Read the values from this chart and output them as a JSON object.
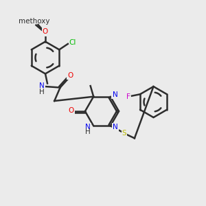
{
  "background_color": "#ebebeb",
  "bond_color": "#2d2d2d",
  "bond_width": 1.8,
  "atom_colors": {
    "C": "#2d2d2d",
    "N": "#0000ee",
    "O": "#ee0000",
    "S": "#bbbb00",
    "F": "#cc00cc",
    "Cl": "#00bb00",
    "H": "#2d2d2d"
  },
  "font_size": 7.5,
  "xlim": [
    0,
    10
  ],
  "ylim": [
    0,
    10
  ]
}
